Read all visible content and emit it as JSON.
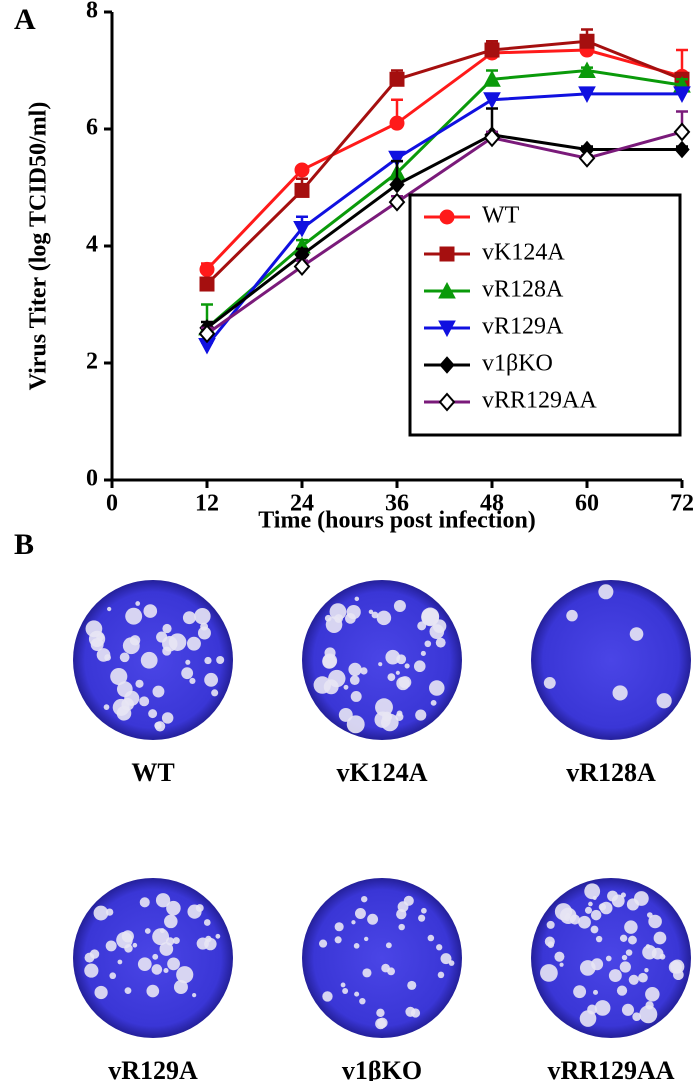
{
  "chart_data": {
    "type": "line",
    "xlabel": "Time (hours post infection)",
    "ylabel": "Virus Titer (log TCID50/ml)",
    "x": [
      12,
      24,
      36,
      48,
      60,
      72
    ],
    "xlim": [
      0,
      72
    ],
    "xticks": [
      0,
      12,
      24,
      36,
      48,
      60,
      72
    ],
    "ylim": [
      0,
      8
    ],
    "yticks": [
      0,
      2,
      4,
      6,
      8
    ],
    "legend": "center right",
    "series": [
      {
        "name": "WT",
        "color": "#ff1a1a",
        "marker": "circle",
        "values": [
          3.6,
          5.3,
          6.1,
          7.3,
          7.35,
          6.9
        ],
        "errors": [
          0.1,
          0.05,
          0.4,
          0.15,
          0.2,
          0.45
        ]
      },
      {
        "name": "vK124A",
        "color": "#a50f0f",
        "marker": "square",
        "values": [
          3.35,
          4.95,
          6.85,
          7.35,
          7.5,
          6.85
        ],
        "errors": [
          0.1,
          0.2,
          0.15,
          0.15,
          0.2,
          0.1
        ]
      },
      {
        "name": "vR128A",
        "color": "#0a9a0a",
        "marker": "triangle-up",
        "values": [
          2.6,
          4.0,
          5.25,
          6.85,
          7.0,
          6.75
        ],
        "errors": [
          0.4,
          0.1,
          0.2,
          0.15,
          0.05,
          0.1
        ]
      },
      {
        "name": "vR129A",
        "color": "#1010e0",
        "marker": "triangle-down",
        "values": [
          2.3,
          4.3,
          5.5,
          6.5,
          6.6,
          6.6
        ],
        "errors": [
          0.05,
          0.2,
          0.05,
          0.05,
          0.05,
          0.05
        ]
      },
      {
        "name": "v1βKO",
        "color": "#000000",
        "marker": "diamond",
        "values": [
          2.6,
          3.85,
          5.05,
          5.9,
          5.65,
          5.65
        ],
        "errors": [
          0.1,
          0.1,
          0.4,
          0.45,
          0.05,
          0.05
        ]
      },
      {
        "name": "vRR129AA",
        "color": "#7a1a7a",
        "marker": "diamond-open",
        "values": [
          2.5,
          3.65,
          4.75,
          5.85,
          5.5,
          5.95
        ],
        "errors": [
          0.1,
          0.1,
          0.1,
          0.1,
          0.05,
          0.35
        ]
      }
    ]
  },
  "figure": {
    "panels": [
      "A",
      "B"
    ],
    "plates": [
      "WT",
      "vK124A",
      "vR128A",
      "vR129A",
      "v1βKO",
      "vRR129AA"
    ]
  }
}
